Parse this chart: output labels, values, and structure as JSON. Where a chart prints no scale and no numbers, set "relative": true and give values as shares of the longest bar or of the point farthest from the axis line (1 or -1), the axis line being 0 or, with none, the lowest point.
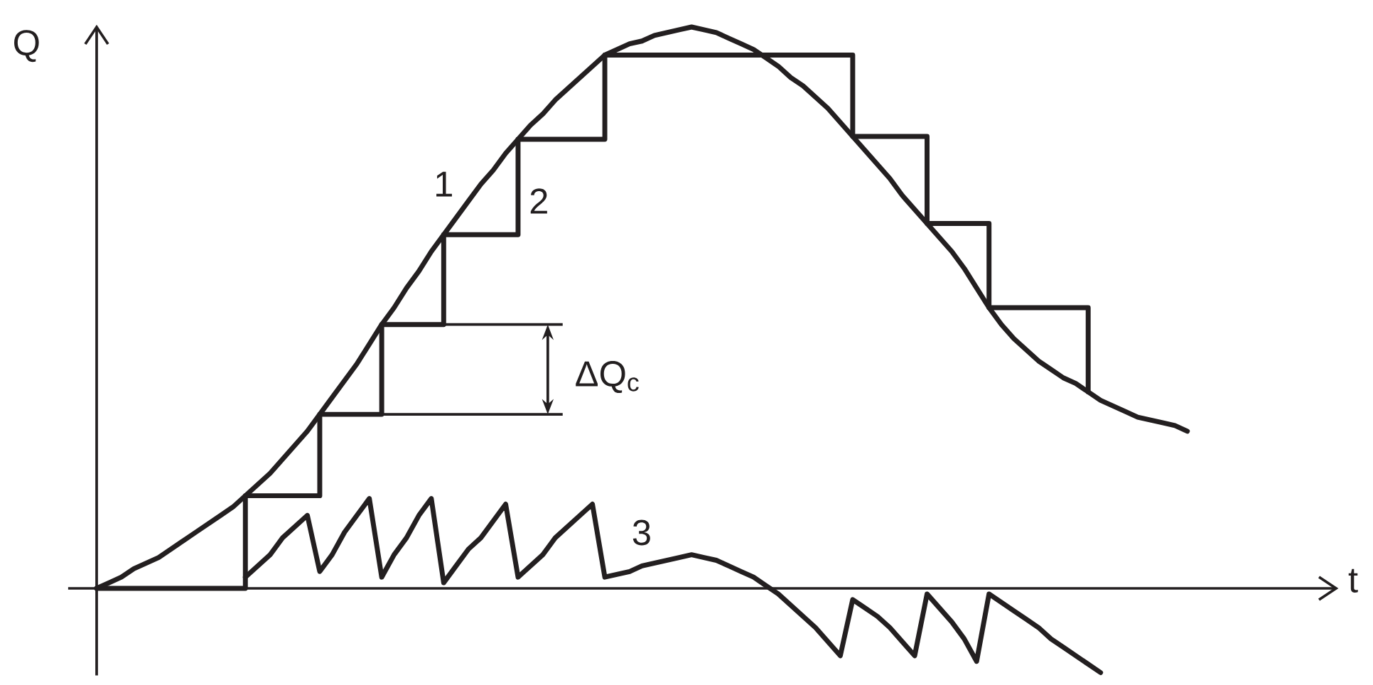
{
  "chart_data": {
    "type": "line",
    "relative": true,
    "xlabel": "t",
    "ylabel": "Q",
    "marker": "none",
    "line_style": "solid",
    "annotations": [
      "ΔQ$_{c}$"
    ],
    "categories": [
      null,
      null,
      null,
      null,
      null,
      null,
      null,
      null,
      null,
      null,
      null,
      null,
      null,
      null,
      null,
      null,
      null,
      null,
      null,
      null,
      null,
      null,
      null,
      null,
      null,
      null,
      null,
      null,
      null,
      null,
      null,
      null,
      null,
      null,
      null,
      null,
      null,
      null,
      null,
      null,
      null,
      null,
      null,
      null,
      null,
      null,
      null,
      null,
      null,
      null,
      null,
      null,
      null,
      null,
      null,
      null,
      null,
      null,
      null,
      null,
      null,
      null,
      null,
      null,
      null,
      null,
      null,
      null,
      null,
      null,
      null,
      null,
      null,
      null,
      null,
      null,
      null,
      null,
      null,
      null,
      null,
      null,
      null,
      null,
      null,
      null,
      null,
      null,
      null
    ],
    "series": [
      {
        "name": "1",
        "color": "#231f20",
        "values": [
          0,
          0.01,
          0.02,
          0.035,
          0.045,
          0.055,
          0.07,
          0.085,
          0.1,
          0.115,
          0.13,
          0.145,
          0.165,
          0.185,
          0.205,
          0.23,
          0.255,
          0.28,
          0.31,
          0.34,
          0.37,
          0.4,
          0.435,
          0.47,
          0.5,
          0.535,
          0.565,
          0.6,
          0.63,
          0.66,
          0.69,
          0.72,
          0.745,
          0.775,
          0.8,
          0.825,
          0.845,
          0.87,
          0.89,
          0.91,
          0.93,
          0.95,
          0.96,
          0.97,
          0.975,
          0.985,
          0.99,
          0.995,
          1,
          0.995,
          0.99,
          0.98,
          0.97,
          0.96,
          0.945,
          0.93,
          0.91,
          0.895,
          0.875,
          0.855,
          0.83,
          0.805,
          0.78,
          0.755,
          0.73,
          0.7,
          0.675,
          0.65,
          0.625,
          0.6,
          0.57,
          0.535,
          0.5,
          0.47,
          0.445,
          0.425,
          0.405,
          0.39,
          0.375,
          0.365,
          0.35,
          0.335,
          0.325,
          0.315,
          0.305,
          0.3,
          0.295,
          0.29,
          0.28
        ]
      },
      {
        "name": "2",
        "type": "step",
        "color": "#231f20",
        "values": [
          0,
          0,
          0,
          0,
          0,
          0,
          0,
          0,
          0,
          0,
          0,
          0,
          0.165,
          0.165,
          0.165,
          0.165,
          0.165,
          0.165,
          0.31,
          0.31,
          0.31,
          0.31,
          0.31,
          0.47,
          0.47,
          0.47,
          0.47,
          0.47,
          0.63,
          0.63,
          0.63,
          0.63,
          0.63,
          0.63,
          0.8,
          0.8,
          0.8,
          0.8,
          0.8,
          0.8,
          0.8,
          0.95,
          0.95,
          0.95,
          0.95,
          0.95,
          0.95,
          0.95,
          0.95,
          0.95,
          0.95,
          0.95,
          0.95,
          0.95,
          0.95,
          0.95,
          0.95,
          0.95,
          0.95,
          0.95,
          0.95,
          0.805,
          0.805,
          0.805,
          0.805,
          0.805,
          0.805,
          0.65,
          0.65,
          0.65,
          0.65,
          0.65,
          0.5,
          0.5,
          0.5,
          0.5,
          0.5,
          0.5,
          0.5,
          0.5,
          0.35,
          null,
          null,
          null,
          null,
          null,
          null,
          null,
          null
        ]
      },
      {
        "name": "3",
        "color": "#231f20",
        "values": [
          null,
          null,
          null,
          null,
          null,
          null,
          null,
          null,
          null,
          null,
          null,
          null,
          0.02,
          0.04,
          0.06,
          0.09,
          0.11,
          0.13,
          0.03,
          0.06,
          0.1,
          0.13,
          0.16,
          0.02,
          0.06,
          0.09,
          0.13,
          0.16,
          0.01,
          0.04,
          0.07,
          0.09,
          0.12,
          0.15,
          0.02,
          0.04,
          0.06,
          0.09,
          0.11,
          0.13,
          0.15,
          0.02,
          0.025,
          0.03,
          0.04,
          0.045,
          0.05,
          0.055,
          0.06,
          0.055,
          0.05,
          0.04,
          0.03,
          0.02,
          0.005,
          -0.01,
          -0.03,
          -0.05,
          -0.07,
          -0.095,
          -0.12,
          -0.02,
          -0.035,
          -0.05,
          -0.07,
          -0.095,
          -0.12,
          -0.01,
          -0.035,
          -0.06,
          -0.09,
          -0.13,
          -0.01,
          -0.025,
          -0.04,
          -0.055,
          -0.07,
          -0.09,
          -0.105,
          -0.12,
          -0.135,
          -0.15,
          null,
          null,
          null,
          null,
          null,
          null,
          null
        ]
      }
    ]
  }
}
